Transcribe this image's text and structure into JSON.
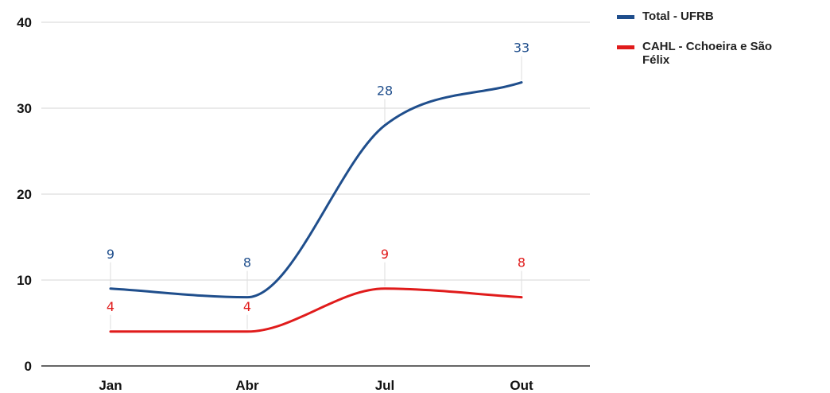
{
  "chart_data": {
    "type": "line",
    "categories": [
      "Jan",
      "Abr",
      "Jul",
      "Out"
    ],
    "ylim": [
      0,
      40
    ],
    "yticks": [
      0,
      10,
      20,
      30,
      40
    ],
    "grid": true,
    "legend_position": "top-right",
    "series": [
      {
        "name": "Total - UFRB",
        "values": [
          9,
          8,
          28,
          33
        ],
        "color": "#1f4e8c"
      },
      {
        "name": "CAHL - Cchoeira e São Félix",
        "values": [
          4,
          4,
          9,
          8
        ],
        "color": "#e01b1b"
      }
    ]
  }
}
